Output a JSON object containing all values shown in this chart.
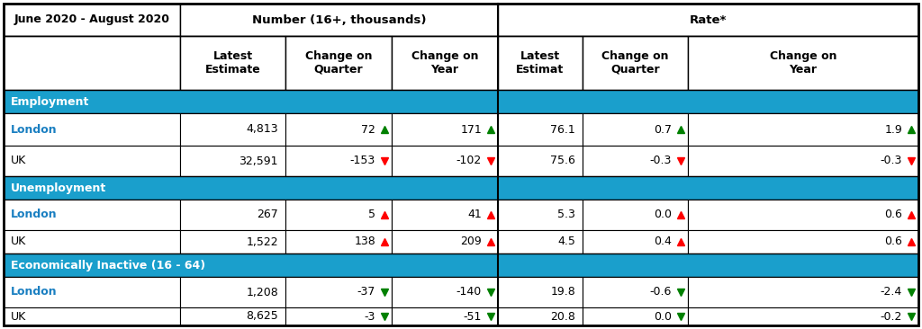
{
  "title": "June 2020 - August 2020",
  "header_bg": "#1a9fcc",
  "london_color": "#1a7fc1",
  "uk_color": "#000000",
  "border_color": "#000000",
  "white": "#ffffff",
  "col_headers_row2": [
    "Latest\nEstimate",
    "Change on\nQuarter",
    "Change on\nYear",
    "Latest\nEstimat",
    "Change on\nQuarter",
    "Change on\nYear"
  ],
  "sections": [
    {
      "name": "Employment",
      "rows": [
        {
          "label": "London",
          "is_london": true,
          "values": [
            "4,813",
            "72",
            "171",
            "76.1",
            "0.7",
            "1.9"
          ],
          "arrows": [
            "none",
            "up_green",
            "up_green",
            "none",
            "up_green",
            "up_green"
          ]
        },
        {
          "label": "UK",
          "is_london": false,
          "values": [
            "32,591",
            "-153",
            "-102",
            "75.6",
            "-0.3",
            "-0.3"
          ],
          "arrows": [
            "none",
            "down_red",
            "down_red",
            "none",
            "down_red",
            "down_red"
          ]
        }
      ]
    },
    {
      "name": "Unemployment",
      "rows": [
        {
          "label": "London",
          "is_london": true,
          "values": [
            "267",
            "5",
            "41",
            "5.3",
            "0.0",
            "0.6"
          ],
          "arrows": [
            "none",
            "up_red",
            "up_red",
            "none",
            "up_red",
            "up_red"
          ]
        },
        {
          "label": "UK",
          "is_london": false,
          "values": [
            "1,522",
            "138",
            "209",
            "4.5",
            "0.4",
            "0.6"
          ],
          "arrows": [
            "none",
            "up_red",
            "up_red",
            "none",
            "up_red",
            "up_red"
          ]
        }
      ]
    },
    {
      "name": "Economically Inactive (16 - 64)",
      "rows": [
        {
          "label": "London",
          "is_london": true,
          "values": [
            "1,208",
            "-37",
            "-140",
            "19.8",
            "-0.6",
            "-2.4"
          ],
          "arrows": [
            "none",
            "down_green",
            "down_green",
            "none",
            "down_green",
            "down_green"
          ]
        },
        {
          "label": "UK",
          "is_london": false,
          "values": [
            "8,625",
            "-3",
            "-51",
            "20.8",
            "0.0",
            "-0.2"
          ],
          "arrows": [
            "none",
            "down_green",
            "down_green",
            "none",
            "down_green",
            "down_green"
          ]
        }
      ]
    }
  ],
  "figsize": [
    10.24,
    3.66
  ],
  "dpi": 100
}
